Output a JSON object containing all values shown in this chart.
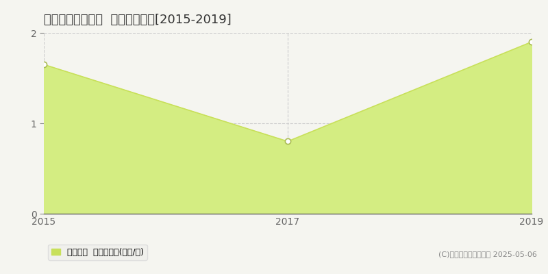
{
  "title": "鳥取市河原町曳田  土地価格推移[2015-2019]",
  "x_values": [
    2015,
    2017,
    2019
  ],
  "y_values": [
    1.65,
    0.8,
    1.9
  ],
  "xlim": [
    2015,
    2019
  ],
  "ylim": [
    0,
    2
  ],
  "yticks": [
    0,
    1,
    2
  ],
  "xticks": [
    2015,
    2017,
    2019
  ],
  "line_color": "#c8e05a",
  "fill_color": "#d4ed82",
  "marker_color": "#ffffff",
  "marker_edge_color": "#aabb55",
  "grid_color": "#cccccc",
  "bg_color": "#f5f5f0",
  "plot_bg_color": "#f5f5f0",
  "legend_label": "土地価格  平均坪単価(万円/坪)",
  "copyright_text": "(C)土地価格ドットコム 2025-05-06",
  "title_fontsize": 13,
  "tick_fontsize": 10,
  "legend_fontsize": 9,
  "copyright_fontsize": 8
}
